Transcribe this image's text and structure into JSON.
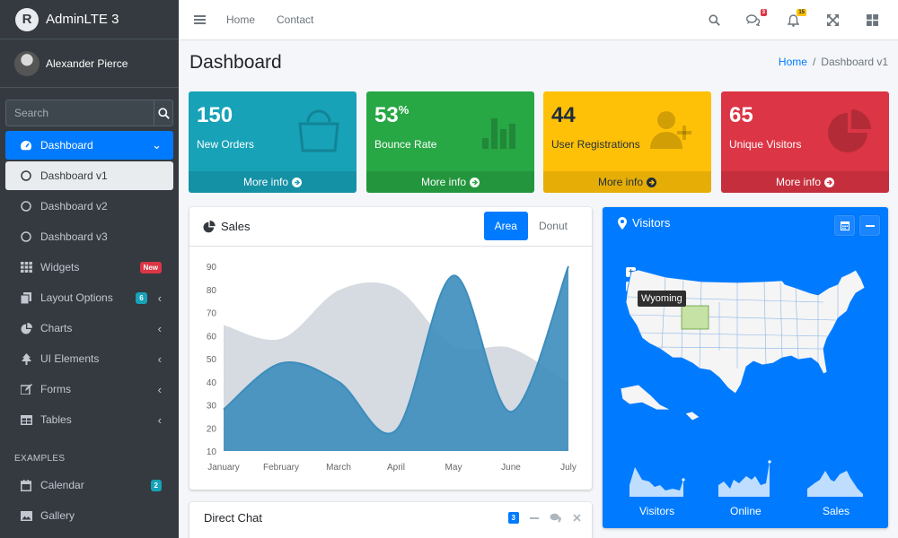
{
  "brand": {
    "logo_letter": "R",
    "name": "AdminLTE 3"
  },
  "user": {
    "name": "Alexander Pierce"
  },
  "search": {
    "placeholder": "Search"
  },
  "nav": {
    "dashboard": "Dashboard",
    "dashboard_v1": "Dashboard v1",
    "dashboard_v2": "Dashboard v2",
    "dashboard_v3": "Dashboard v3",
    "widgets": "Widgets",
    "widgets_badge": "New",
    "layout_options": "Layout Options",
    "layout_options_badge": "6",
    "charts": "Charts",
    "ui_elements": "UI Elements",
    "forms": "Forms",
    "tables": "Tables",
    "examples_header": "EXAMPLES",
    "calendar": "Calendar",
    "calendar_badge": "2",
    "gallery": "Gallery"
  },
  "topnav": {
    "home": "Home",
    "contact": "Contact",
    "messages_badge": "3",
    "notifications_badge": "15"
  },
  "page": {
    "title": "Dashboard",
    "crumb_home": "Home",
    "crumb_sep": "/",
    "crumb_current": "Dashboard v1"
  },
  "boxes": [
    {
      "value": "150",
      "suffix": "",
      "label": "New Orders",
      "link": "More info",
      "icon": "shopping-bag-icon"
    },
    {
      "value": "53",
      "suffix": "%",
      "label": "Bounce Rate",
      "link": "More info",
      "icon": "bar-chart-icon"
    },
    {
      "value": "44",
      "suffix": "",
      "label": "User Registrations",
      "link": "More info",
      "icon": "user-plus-icon"
    },
    {
      "value": "65",
      "suffix": "",
      "label": "Unique Visitors",
      "link": "More info",
      "icon": "pie-chart-icon"
    }
  ],
  "sales": {
    "title": "Sales",
    "tab_area": "Area",
    "tab_donut": "Donut"
  },
  "visitors": {
    "title": "Visitors",
    "tooltip": "Wyoming",
    "zoom_in": "+",
    "zoom_out": "−",
    "spark_labels": [
      "Visitors",
      "Online",
      "Sales"
    ]
  },
  "chat": {
    "title": "Direct Chat",
    "badge": "3"
  },
  "colors": {
    "primary": "#007bff",
    "info": "#17a2b8",
    "success": "#28a745",
    "warning": "#ffc107",
    "danger": "#dc3545",
    "sidebar": "#343a40"
  },
  "chart_data": {
    "type": "area",
    "categories": [
      "January",
      "February",
      "March",
      "April",
      "May",
      "June",
      "July"
    ],
    "ylim": [
      10,
      90
    ],
    "yticks": [
      10,
      20,
      30,
      40,
      50,
      60,
      70,
      80,
      90
    ],
    "series": [
      {
        "values": [
          65,
          59,
          80,
          81,
          56,
          55,
          40
        ],
        "color": "#d2d6de"
      },
      {
        "values": [
          28,
          48,
          40,
          19,
          86,
          27,
          90
        ],
        "color": "#3c8dbc"
      }
    ],
    "grid": false
  }
}
